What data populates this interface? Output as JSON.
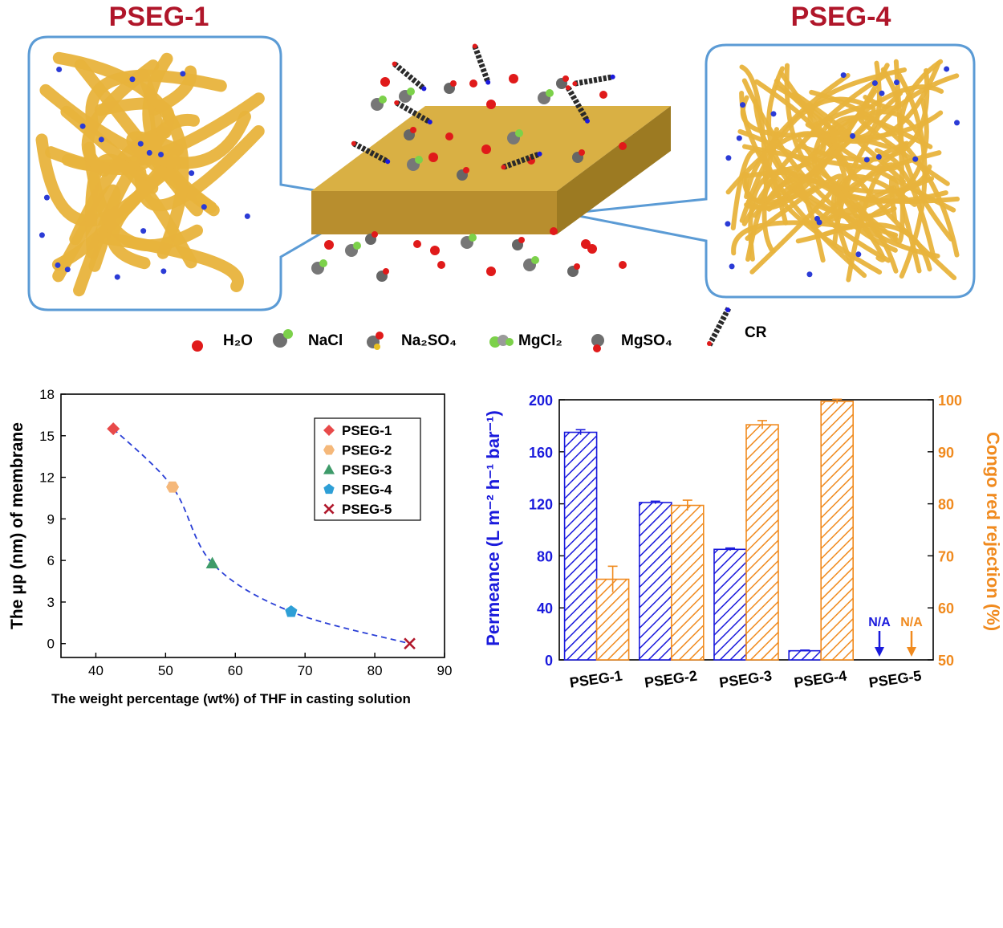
{
  "titles": {
    "left": "PSEG-1",
    "right": "PSEG-4"
  },
  "legend_top": {
    "h2o": "H₂O",
    "nacl": "NaCl",
    "na2so4": "Na₂SO₄",
    "mgcl2": "MgCl₂",
    "mgso4": "MgSO₄",
    "cr": "CR"
  },
  "colors": {
    "title_red": "#b0162a",
    "fiber": "#e8b33c",
    "frame": "#5b9bd5",
    "membrane": "#c9a03a",
    "blue": "#1a1adc",
    "orange": "#f08a1e",
    "water": "#e01a1a"
  },
  "chart_data": [
    {
      "type": "scatter",
      "xlabel": "The weight percentage (wt%) of THF in casting solution",
      "ylabel": "The μp (nm) of membrane",
      "xlim": [
        35,
        90
      ],
      "ylim": [
        -1,
        18
      ],
      "xticks": [
        "40",
        "50",
        "60",
        "70",
        "80",
        "90"
      ],
      "yticks": [
        "0",
        "3",
        "6",
        "9",
        "12",
        "15",
        "18"
      ],
      "legend_placement": "top-right",
      "series": [
        {
          "name": "PSEG-1",
          "x": 42.5,
          "y": 15.5,
          "marker": "diamond",
          "color": "#e84a4a"
        },
        {
          "name": "PSEG-2",
          "x": 51.0,
          "y": 11.3,
          "marker": "hexagon",
          "color": "#f5b87a"
        },
        {
          "name": "PSEG-3",
          "x": 56.7,
          "y": 5.8,
          "marker": "triangle",
          "color": "#3e9b6a"
        },
        {
          "name": "PSEG-4",
          "x": 68.0,
          "y": 2.3,
          "marker": "pentagon",
          "color": "#2e9fd6"
        },
        {
          "name": "PSEG-5",
          "x": 85.0,
          "y": 0.0,
          "marker": "x",
          "color": "#b0162a"
        }
      ],
      "fit_curve": "dashed"
    },
    {
      "type": "bar",
      "categories": [
        "PSEG-1",
        "PSEG-2",
        "PSEG-3",
        "PSEG-4",
        "PSEG-5"
      ],
      "ylabel_left": "Permeance (L m⁻² h⁻¹ bar⁻¹)",
      "ylabel_right": "Congo red rejection (%)",
      "ylim_left": [
        0,
        200
      ],
      "ylim_right": [
        50,
        100
      ],
      "yticks_left": [
        "0",
        "40",
        "80",
        "120",
        "160",
        "200"
      ],
      "yticks_right": [
        "50",
        "60",
        "70",
        "80",
        "90",
        "100"
      ],
      "series": [
        {
          "name": "Permeance",
          "axis": "left",
          "values": [
            175,
            121,
            85,
            7,
            null
          ],
          "errors": [
            2,
            1,
            1,
            0.5,
            null
          ]
        },
        {
          "name": "Congo red rejection",
          "axis": "right",
          "values": [
            65.5,
            79.7,
            95.2,
            99.7,
            null
          ],
          "errors": [
            2.5,
            1.0,
            0.8,
            0.4,
            null
          ]
        }
      ],
      "annotations": [
        {
          "text": "N/A",
          "category": "PSEG-5",
          "series": "Permeance"
        },
        {
          "text": "N/A",
          "category": "PSEG-5",
          "series": "Congo red rejection"
        }
      ]
    }
  ]
}
